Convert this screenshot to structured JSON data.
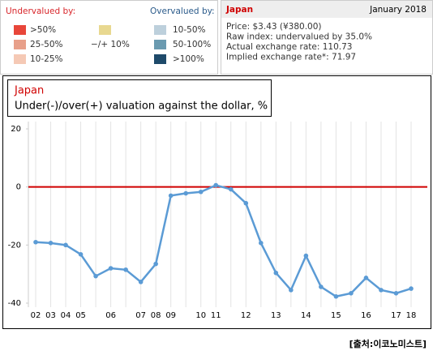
{
  "legend": {
    "undervalued_title": "Undervalued by:",
    "undervalued_color": "#d8262b",
    "overvalued_title": "Overvalued by:",
    "overvalued_color": "#2a5a8a",
    "under_items": [
      {
        "label": ">50%",
        "color": "#e8463a"
      },
      {
        "label": "25-50%",
        "color": "#e8a08a"
      },
      {
        "label": "10-25%",
        "color": "#f5c9b5"
      }
    ],
    "neutral_item": {
      "label": "−/+ 10%",
      "color": "#e8d890"
    },
    "over_items": [
      {
        "label": "10-50%",
        "color": "#bdd0dc"
      },
      {
        "label": "50-100%",
        "color": "#6a9ab0"
      },
      {
        "label": ">100%",
        "color": "#1e4a6a"
      }
    ]
  },
  "info": {
    "country": "Japan",
    "date": "January 2018",
    "lines": [
      "Price: $3.43 (¥380.00)",
      "Raw index: undervalued by 35.0%",
      "Actual exchange rate: 110.73",
      "Implied exchange rate*: 71.97"
    ]
  },
  "chart_data": {
    "type": "line",
    "title": "Japan",
    "subtitle": "Under(-)/over(+) valuation against the dollar, %",
    "categories": [
      "02",
      "03",
      "04",
      "05",
      null,
      "06",
      null,
      "07",
      "08",
      "09",
      null,
      "10",
      "11",
      null,
      "12",
      null,
      "13",
      null,
      "14",
      null,
      "15",
      null,
      "16",
      null,
      "17",
      "18"
    ],
    "series": [
      {
        "name": "Japan",
        "color": "#5b9bd5",
        "values": [
          -19,
          -19.3,
          -20,
          -23.2,
          -30.7,
          -28,
          -28.5,
          -32.7,
          -26.5,
          -3,
          -2.2,
          -1.7,
          0.6,
          -0.8,
          -5.6,
          -19.3,
          -29.6,
          -35.5,
          -23.7,
          -34.4,
          -37.7,
          -36.6,
          -31.3,
          -35.5,
          -36.6,
          -35
        ]
      }
    ],
    "ylim": [
      -40,
      20
    ],
    "yticks": [
      -40,
      -20,
      0,
      20
    ],
    "grid": true,
    "reference_line": {
      "value": 0,
      "color": "#d00000"
    }
  },
  "source": "[출처:이코노미스트]"
}
